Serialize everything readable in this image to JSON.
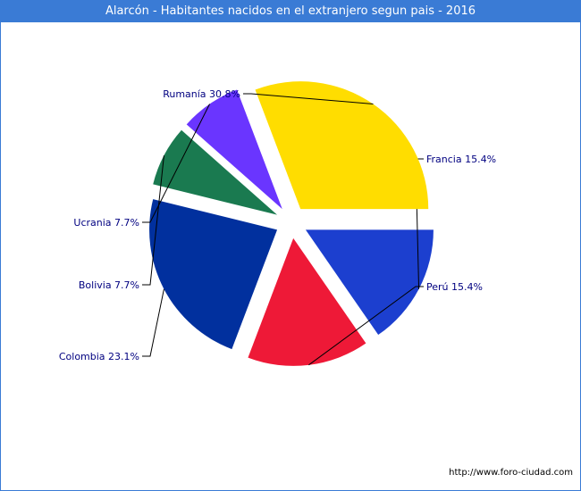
{
  "chart_data": {
    "type": "pie",
    "title": "Alarcón - Habitantes nacidos en el extranjero segun pais - 2016",
    "slices": [
      {
        "name": "Francia",
        "value": 15.4,
        "label": "Francia 15.4%",
        "color": "#1c3fcf"
      },
      {
        "name": "Perú",
        "value": 15.4,
        "label": "Perú 15.4%",
        "color": "#ee1937"
      },
      {
        "name": "Colombia",
        "value": 23.1,
        "label": "Colombia 23.1%",
        "color": "#01309e"
      },
      {
        "name": "Bolivia",
        "value": 7.7,
        "label": "Bolivia 7.7%",
        "color": "#1a7a50"
      },
      {
        "name": "Ucrania",
        "value": 7.7,
        "label": "Ucrania 7.7%",
        "color": "#6a35ff"
      },
      {
        "name": "Rumanía",
        "value": 30.8,
        "label": "Rumanía 30.8%",
        "color": "#ffdd00"
      }
    ],
    "legend": "none"
  },
  "footer": {
    "source": "http://www.foro-ciudad.com"
  }
}
